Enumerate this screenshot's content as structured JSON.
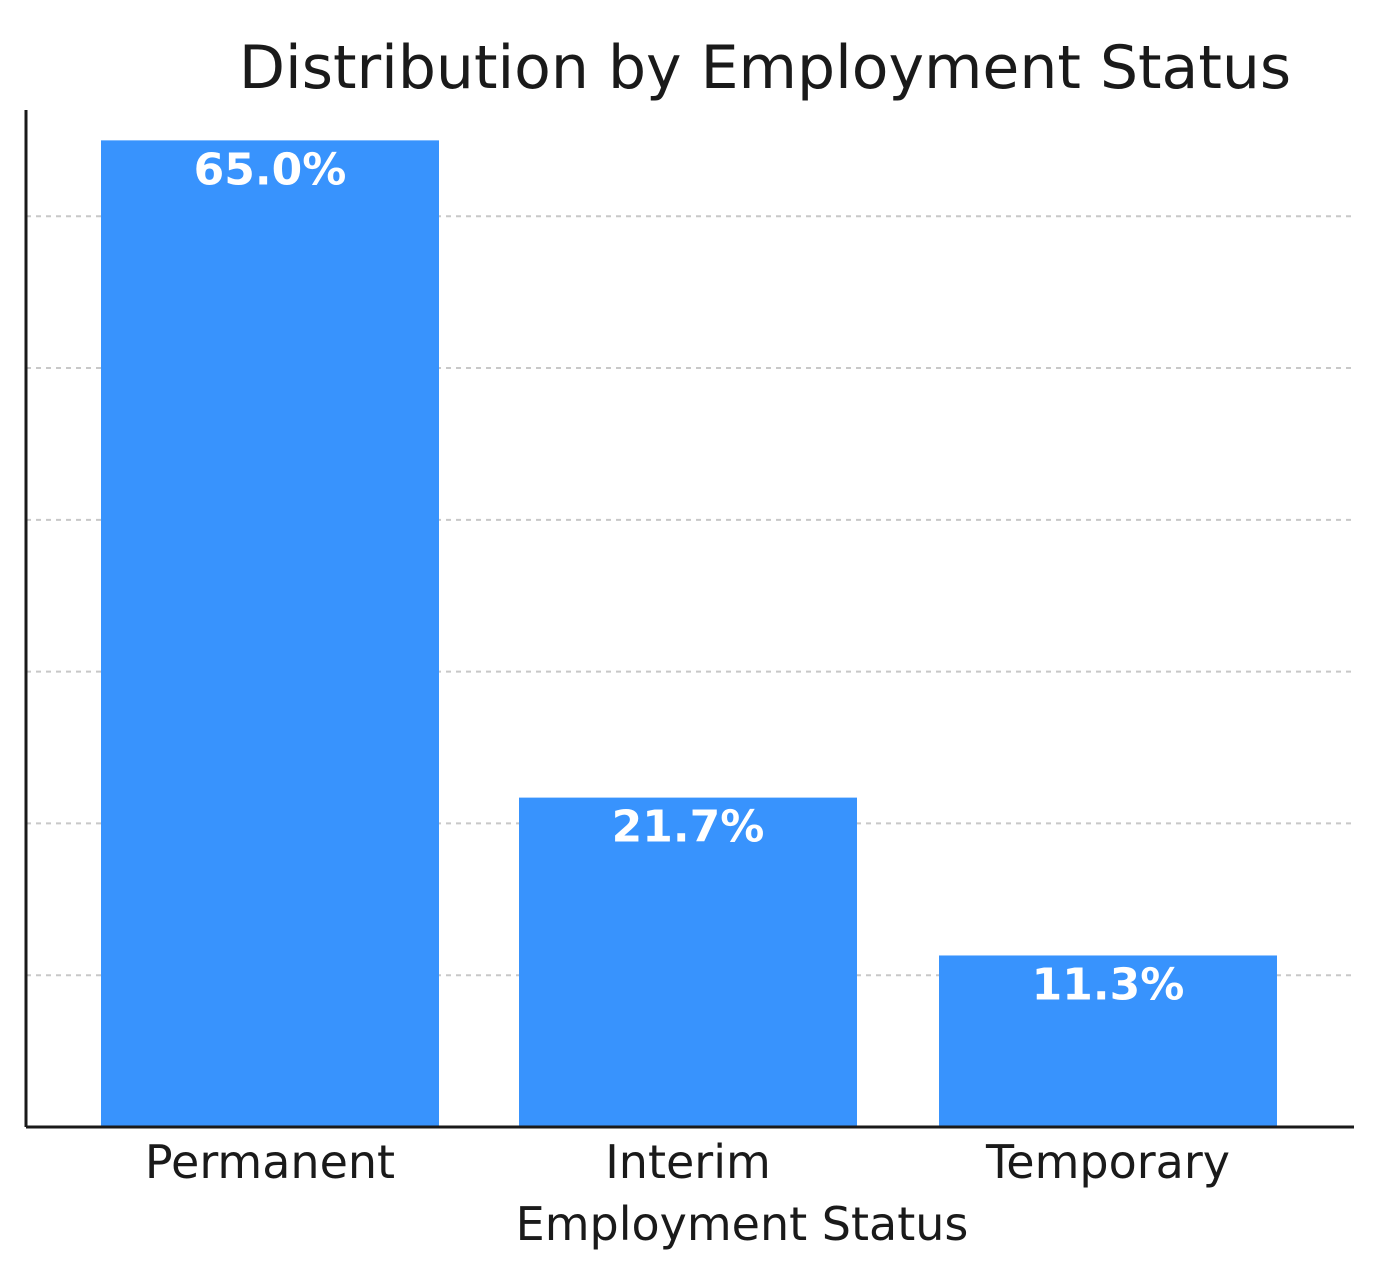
{
  "chart_data": {
    "type": "bar",
    "title": "Distribution by Employment Status",
    "xlabel": "Employment Status",
    "ylabel": "",
    "categories": [
      "Permanent",
      "Interim",
      "Temporary"
    ],
    "values": [
      65.0,
      21.7,
      11.3
    ],
    "value_labels": [
      "65.0%",
      "21.7%",
      "11.3%"
    ],
    "ylim": [
      0,
      67
    ],
    "y_gridlines": [
      10,
      20,
      30,
      40,
      50,
      60
    ],
    "grid": true,
    "bar_color": "#3893fd",
    "value_label_color": "#ffffff"
  }
}
